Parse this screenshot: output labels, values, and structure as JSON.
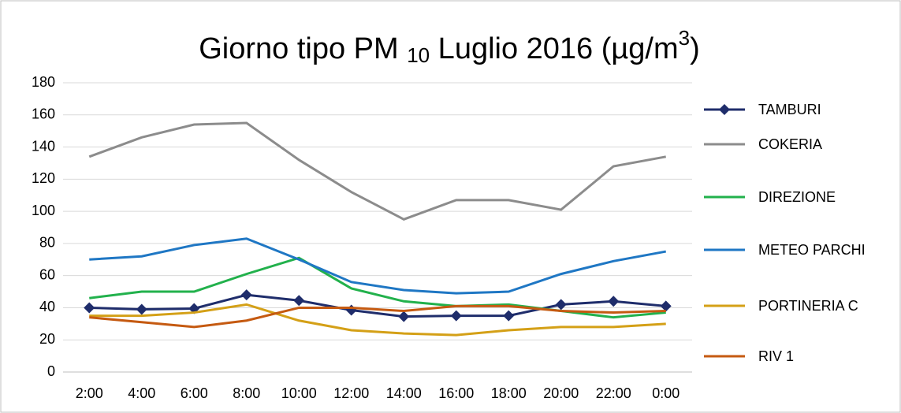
{
  "chart_data": {
    "type": "line",
    "title": [
      "Giorno tipo PM ",
      "10",
      " Luglio 2016 (µg/m",
      "3",
      ")"
    ],
    "categories": [
      "2:00",
      "4:00",
      "6:00",
      "8:00",
      "10:00",
      "12:00",
      "14:00",
      "16:00",
      "18:00",
      "20:00",
      "22:00",
      "0:00"
    ],
    "series": [
      {
        "name": "TAMBURI",
        "color": "#1f2d6b",
        "marker": "diamond",
        "values": [
          40,
          39,
          39.5,
          48,
          44.5,
          38.5,
          34.5,
          35,
          35,
          42,
          44,
          41
        ]
      },
      {
        "name": "COKERIA",
        "color": "#8c8c8c",
        "values": [
          134,
          146,
          154,
          155,
          132,
          112,
          95,
          107,
          107,
          101,
          128,
          134
        ]
      },
      {
        "name": "DIREZIONE",
        "color": "#22b14c",
        "values": [
          46,
          50,
          50,
          61,
          71,
          52,
          44,
          41,
          42,
          38,
          34,
          37
        ]
      },
      {
        "name": "METEO PARCHI",
        "color": "#1f77c4",
        "values": [
          70,
          72,
          79,
          83,
          70,
          56,
          51,
          49,
          50,
          61,
          69,
          75
        ]
      },
      {
        "name": "PORTINERIA C",
        "color": "#d4a017",
        "values": [
          35,
          35,
          37,
          42,
          32,
          26,
          24,
          23,
          26,
          28,
          28,
          30
        ]
      },
      {
        "name": "RIV 1",
        "color": "#c55a11",
        "values": [
          34,
          31,
          28,
          32,
          40,
          40,
          38,
          41,
          41,
          38,
          37,
          38
        ]
      }
    ],
    "ylim": [
      0,
      180
    ],
    "yticks": [
      0,
      20,
      40,
      60,
      80,
      100,
      120,
      140,
      160,
      180
    ],
    "grid": true,
    "legend": "right"
  }
}
